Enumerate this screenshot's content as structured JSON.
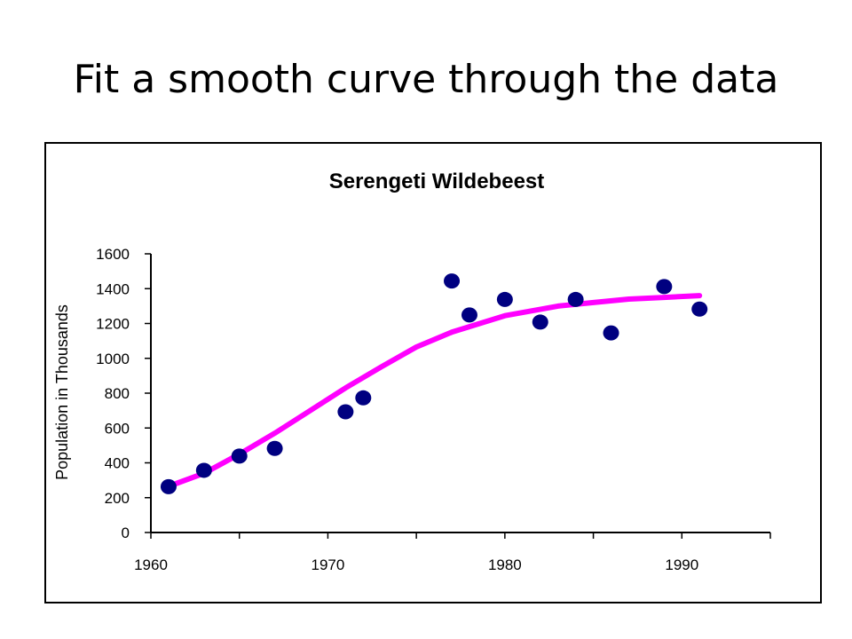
{
  "slide": {
    "title": "Fit a smooth curve through the data"
  },
  "chart_data": {
    "type": "scatter",
    "title": "Serengeti Wildebeest",
    "xlabel": "",
    "ylabel": "Population in Thousands",
    "xlim": [
      1960,
      1995
    ],
    "ylim": [
      0,
      1600
    ],
    "x_ticks": [
      1960,
      1970,
      1980,
      1990
    ],
    "y_ticks": [
      0,
      200,
      400,
      600,
      800,
      1000,
      1200,
      1400,
      1600
    ],
    "grid": false,
    "legend": "none",
    "series": [
      {
        "type": "scatter",
        "color": "#000080",
        "points": [
          {
            "x": 1961,
            "y": 263
          },
          {
            "x": 1963,
            "y": 357
          },
          {
            "x": 1965,
            "y": 439
          },
          {
            "x": 1967,
            "y": 483
          },
          {
            "x": 1971,
            "y": 693
          },
          {
            "x": 1972,
            "y": 773
          },
          {
            "x": 1977,
            "y": 1444
          },
          {
            "x": 1978,
            "y": 1249
          },
          {
            "x": 1980,
            "y": 1338
          },
          {
            "x": 1982,
            "y": 1208
          },
          {
            "x": 1984,
            "y": 1338
          },
          {
            "x": 1986,
            "y": 1146
          },
          {
            "x": 1989,
            "y": 1412
          },
          {
            "x": 1991,
            "y": 1283
          }
        ]
      },
      {
        "type": "line",
        "color": "#ff00ff",
        "points": [
          {
            "x": 1961,
            "y": 265
          },
          {
            "x": 1963,
            "y": 340
          },
          {
            "x": 1965,
            "y": 450
          },
          {
            "x": 1967,
            "y": 570
          },
          {
            "x": 1969,
            "y": 700
          },
          {
            "x": 1971,
            "y": 830
          },
          {
            "x": 1973,
            "y": 950
          },
          {
            "x": 1975,
            "y": 1065
          },
          {
            "x": 1977,
            "y": 1150
          },
          {
            "x": 1980,
            "y": 1245
          },
          {
            "x": 1983,
            "y": 1300
          },
          {
            "x": 1985,
            "y": 1320
          },
          {
            "x": 1987,
            "y": 1340
          },
          {
            "x": 1989,
            "y": 1350
          },
          {
            "x": 1991,
            "y": 1360
          }
        ]
      }
    ]
  }
}
